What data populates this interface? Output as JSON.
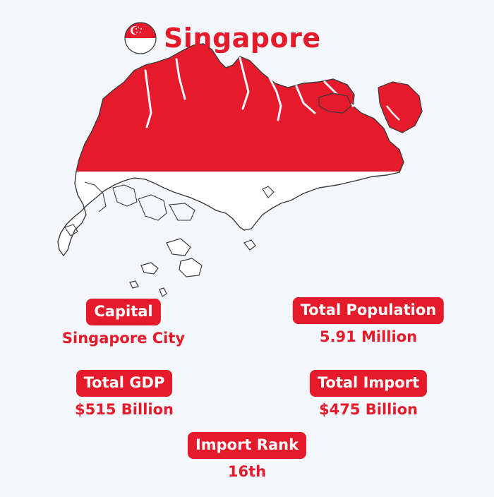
{
  "title": "Singapore",
  "colors": {
    "accent": "#e51a2a",
    "background": "#f4f7fb",
    "flag_white": "#ffffff",
    "outline": "#3a3a3a"
  },
  "icons": {
    "flag": "singapore-flag-icon"
  },
  "stats": {
    "capital": {
      "label": "Capital",
      "value": "Singapore City"
    },
    "population": {
      "label": "Total Population",
      "value": "5.91 Million"
    },
    "gdp": {
      "label": "Total GDP",
      "value": "$515 Billion"
    },
    "import": {
      "label": "Total Import",
      "value": "$475 Billion"
    },
    "import_rank": {
      "label": "Import Rank",
      "value": "16th"
    }
  }
}
